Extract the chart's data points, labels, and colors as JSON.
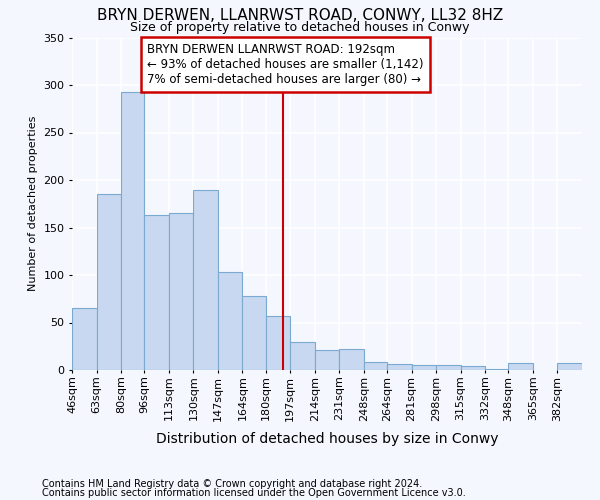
{
  "title1": "BRYN DERWEN, LLANRWST ROAD, CONWY, LL32 8HZ",
  "title2": "Size of property relative to detached houses in Conwy",
  "xlabel": "Distribution of detached houses by size in Conwy",
  "ylabel": "Number of detached properties",
  "footer1": "Contains HM Land Registry data © Crown copyright and database right 2024.",
  "footer2": "Contains public sector information licensed under the Open Government Licence v3.0.",
  "annotation_line1": "BRYN DERWEN LLANRWST ROAD: 192sqm",
  "annotation_line2": "← 93% of detached houses are smaller (1,142)",
  "annotation_line3": "7% of semi-detached houses are larger (80) →",
  "bar_color": "#c8d8f0",
  "bar_edge_color": "#7aaad0",
  "reference_line_color": "#cc0000",
  "reference_line_x": 192,
  "categories": [
    "46sqm",
    "63sqm",
    "80sqm",
    "96sqm",
    "113sqm",
    "130sqm",
    "147sqm",
    "164sqm",
    "180sqm",
    "197sqm",
    "214sqm",
    "231sqm",
    "248sqm",
    "264sqm",
    "281sqm",
    "298sqm",
    "315sqm",
    "332sqm",
    "348sqm",
    "365sqm",
    "382sqm"
  ],
  "bin_edges": [
    46,
    63,
    80,
    96,
    113,
    130,
    147,
    164,
    180,
    197,
    214,
    231,
    248,
    264,
    281,
    298,
    315,
    332,
    348,
    365,
    382,
    399
  ],
  "values": [
    65,
    185,
    293,
    163,
    165,
    190,
    103,
    78,
    57,
    30,
    21,
    22,
    8,
    6,
    5,
    5,
    4,
    1,
    7,
    0,
    7
  ],
  "ylim": [
    0,
    350
  ],
  "background_color": "#f5f7ff",
  "grid_color": "#ffffff",
  "title1_fontsize": 11,
  "title2_fontsize": 9,
  "ylabel_fontsize": 8,
  "xlabel_fontsize": 10,
  "footer_fontsize": 7,
  "annotation_fontsize": 8.5,
  "tick_fontsize": 8
}
